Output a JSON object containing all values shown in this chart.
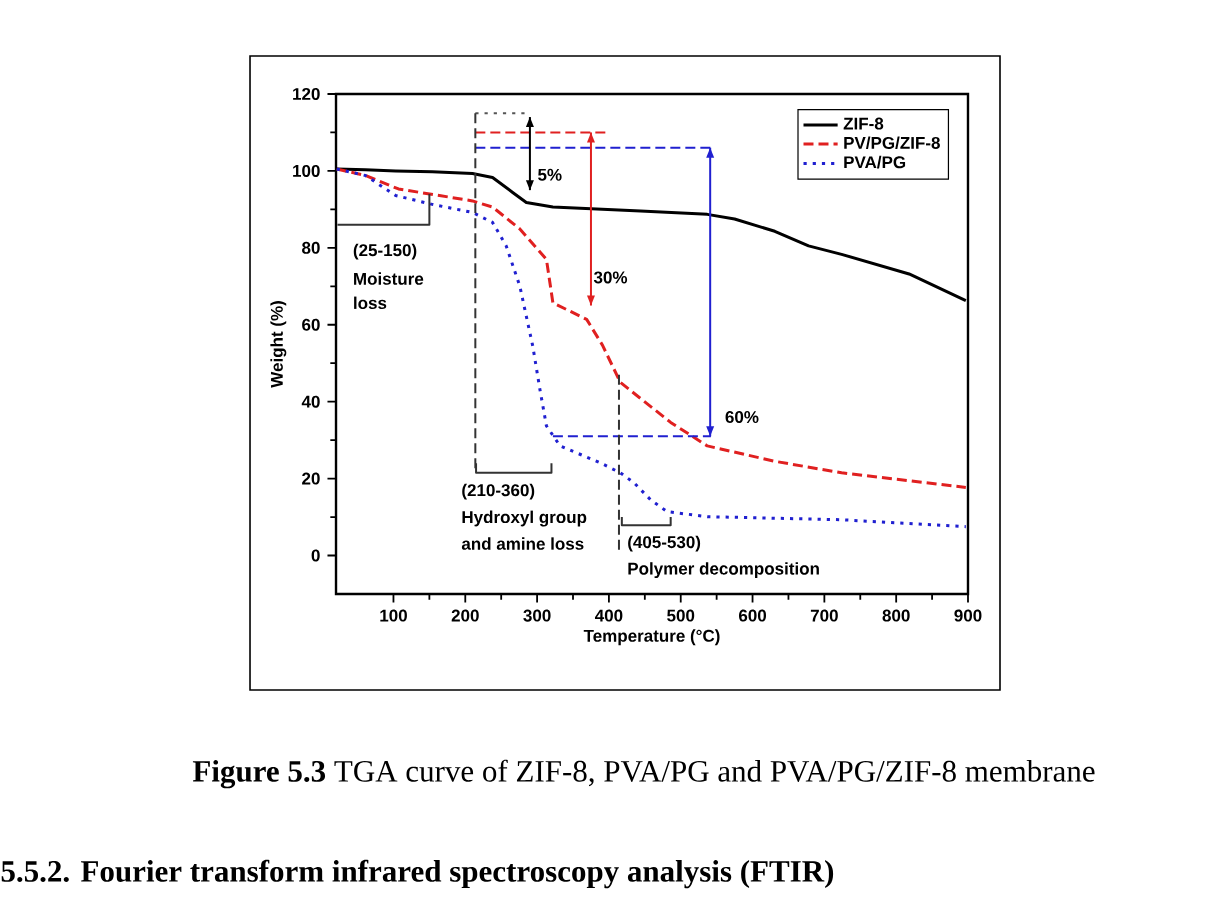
{
  "chart_data": {
    "type": "line",
    "xlabel": "Temperature (°C)",
    "ylabel": "Weight (%)",
    "xlim": [
      20,
      900
    ],
    "ylim": [
      -10,
      120
    ],
    "xticks": [
      100,
      200,
      300,
      400,
      500,
      600,
      700,
      800,
      900
    ],
    "yticks": [
      0,
      20,
      40,
      60,
      80,
      100,
      120
    ],
    "legend": "top right",
    "marker": "none",
    "series": [
      {
        "name": "ZIF-8",
        "color": "#000000",
        "line_style": "solid",
        "x": [
          21,
          61,
          103,
          154,
          210,
          238,
          266,
          285,
          322,
          444,
          537,
          575,
          631,
          678,
          724,
          818,
          897
        ],
        "values": [
          100.5,
          100.3,
          100,
          99.8,
          99.3,
          98.3,
          94.4,
          91.8,
          90.6,
          89.6,
          88.7,
          87.5,
          84.3,
          80.5,
          78.3,
          73.2,
          66.3
        ]
      },
      {
        "name": "PV/PG/ZIF-8",
        "color": "#e02020",
        "line_style": "dashed",
        "x": [
          21,
          61,
          107,
          164,
          210,
          238,
          276,
          313,
          322,
          369,
          391,
          416,
          486,
          537,
          631,
          724,
          897
        ],
        "values": [
          100.5,
          98.8,
          95.3,
          93.6,
          92.2,
          90.6,
          84.9,
          77,
          65.7,
          61.4,
          54.7,
          45,
          34.6,
          28.5,
          24.5,
          21.5,
          17.7
        ]
      },
      {
        "name": "PVA/PG",
        "color": "#2020d0",
        "line_style": "dotted",
        "x": [
          21,
          61,
          103,
          154,
          210,
          238,
          257,
          276,
          294,
          304,
          313,
          332,
          388,
          416,
          435,
          458,
          481,
          537,
          724,
          897
        ],
        "values": [
          100.5,
          98.8,
          93.6,
          91.3,
          89.2,
          86.6,
          80.5,
          70,
          54.4,
          43.1,
          33.7,
          28.5,
          24.1,
          21.5,
          18.9,
          14.5,
          11.4,
          10.1,
          9.3,
          7.5
        ]
      },
      {
        "color": "#555555",
        "line_style": "dotted",
        "x": [
          214,
          290
        ],
        "values": [
          115,
          115
        ]
      },
      {
        "color": "#e02020",
        "line_style": "dashed",
        "x": [
          214,
          400
        ],
        "values": [
          110,
          110
        ]
      },
      {
        "color": "#2020d0",
        "line_style": "dashed",
        "x": [
          214,
          542
        ],
        "values": [
          106,
          106
        ]
      },
      {
        "color": "#2020d0",
        "line_style": "dashed",
        "x": [
          322,
          542
        ],
        "values": [
          31,
          31
        ]
      },
      {
        "color": "#333333",
        "line_style": "dashed",
        "x": [
          214,
          214
        ],
        "values": [
          115,
          21.5
        ]
      },
      {
        "color": "#333333",
        "line_style": "dashed",
        "x": [
          414,
          414
        ],
        "values": [
          47,
          0.5
        ]
      },
      {
        "color": "#000000",
        "line_style": "solid",
        "x": [
          290,
          290
        ],
        "values": [
          114,
          95
        ]
      },
      {
        "color": "#e02020",
        "line_style": "solid",
        "x": [
          375,
          375
        ],
        "values": [
          110,
          65
        ]
      },
      {
        "color": "#2020d0",
        "line_style": "solid",
        "x": [
          541,
          541
        ],
        "values": [
          31,
          106
        ]
      },
      {
        "color": "#333333",
        "line_style": "solid",
        "x": [
          22,
          150,
          150
        ],
        "values": [
          86,
          86,
          94
        ]
      },
      {
        "color": "#333333",
        "line_style": "solid",
        "x": [
          215,
          215,
          320,
          320
        ],
        "values": [
          24,
          21.5,
          21.5,
          24
        ]
      },
      {
        "color": "#333333",
        "line_style": "solid",
        "x": [
          418,
          418,
          486,
          486
        ],
        "values": [
          10,
          7.9,
          7.9,
          10
        ]
      }
    ],
    "annotations": [
      "(25-150)",
      "Moisture",
      "loss",
      {
        "text": "5%",
        "x": 300,
        "y": 99
      },
      {
        "text": "30%",
        "x": 378,
        "y": 72.3
      },
      "60%",
      "(210-360)",
      "Hydroxyl group",
      "and amine loss",
      {
        "text": "(405-530)",
        "x": 425,
        "y": 3.1
      },
      "Polymer decomposition",
      "**Figure 5.3** TGA curve of ZIF-8, PVA/PG and PVA/PG/ZIF-8 membrane",
      "5.5.2.   Fourier transform infrared spectroscopy analysis (FTIR)"
    ]
  }
}
